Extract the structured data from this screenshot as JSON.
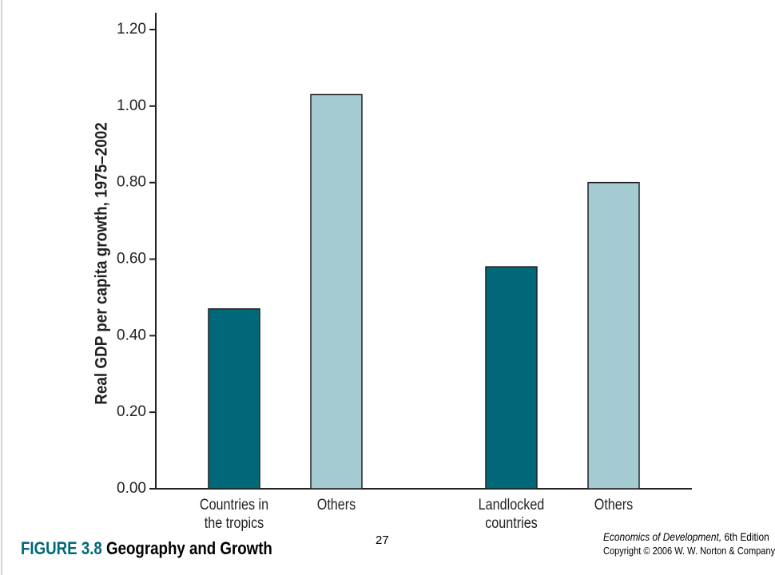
{
  "chart_data": {
    "type": "bar",
    "y_label": "Real GDP per capita growth, 1975–2002",
    "categories": [
      "Countries in\nthe tropics",
      "Others",
      "Landlocked\ncountries",
      "Others"
    ],
    "values": [
      0.47,
      1.03,
      0.58,
      0.8
    ],
    "colors": [
      "#006878",
      "#a3cbd1",
      "#006878",
      "#a3cbd1"
    ],
    "ylim": [
      0,
      1.2
    ],
    "yticks": [
      {
        "value": 0,
        "label": "0.00"
      },
      {
        "value": 0.2,
        "label": "0.20"
      },
      {
        "value": 0.4,
        "label": "0.40"
      },
      {
        "value": 0.6,
        "label": "0.60"
      },
      {
        "value": 0.8,
        "label": "0.80"
      },
      {
        "value": 1.0,
        "label": "1.00"
      },
      {
        "value": 1.2,
        "label": "1.20"
      }
    ]
  },
  "footer": {
    "figure_number": "FIGURE 3.8",
    "figure_title": "Geography and Growth",
    "page_number": "27",
    "book_title": "Economics of Development,",
    "edition": "6th Edition",
    "copyright": "Copyright © 2006 W. W. Norton & Company"
  }
}
